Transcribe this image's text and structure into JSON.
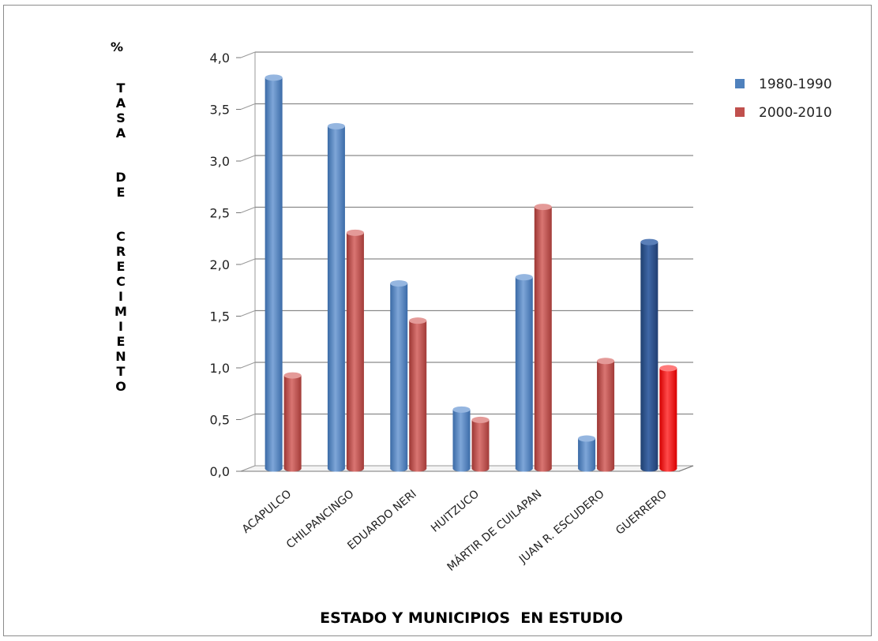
{
  "chart_data": {
    "type": "bar",
    "title": "",
    "ylabel_top": "%",
    "ylabel_words": [
      "TASA",
      "DE",
      "CRECIMIENTO"
    ],
    "xlabel": "ESTADO Y MUNICIPIOS  EN ESTUDIO",
    "ylim": [
      0,
      4
    ],
    "yticks": [
      "0,0",
      "0,5",
      "1,0",
      "1,5",
      "2,0",
      "2,5",
      "3,0",
      "3,5",
      "4,0"
    ],
    "grid": true,
    "legend_position": "top-right",
    "categories": [
      "ACAPULCO",
      "CHILPANCINGO",
      "EDUARDO NERI",
      "HUITZUCO",
      "MÁRTIR DE CUILAPAN",
      "JUAN R. ESCUDERO",
      "GUERRERO"
    ],
    "series": [
      {
        "name": "1980-1990",
        "color": "#4f81bd",
        "values": [
          3.78,
          3.31,
          1.79,
          0.57,
          1.85,
          0.29,
          2.19
        ]
      },
      {
        "name": "2000-2010",
        "color": "#c0504d",
        "values": [
          0.9,
          2.28,
          1.43,
          0.47,
          2.53,
          1.04,
          0.97
        ]
      }
    ],
    "highlight_colors": {
      "1980-1990": "#2f5597",
      "2000-2010": "#ff0000"
    },
    "highlight_category": "GUERRERO"
  }
}
